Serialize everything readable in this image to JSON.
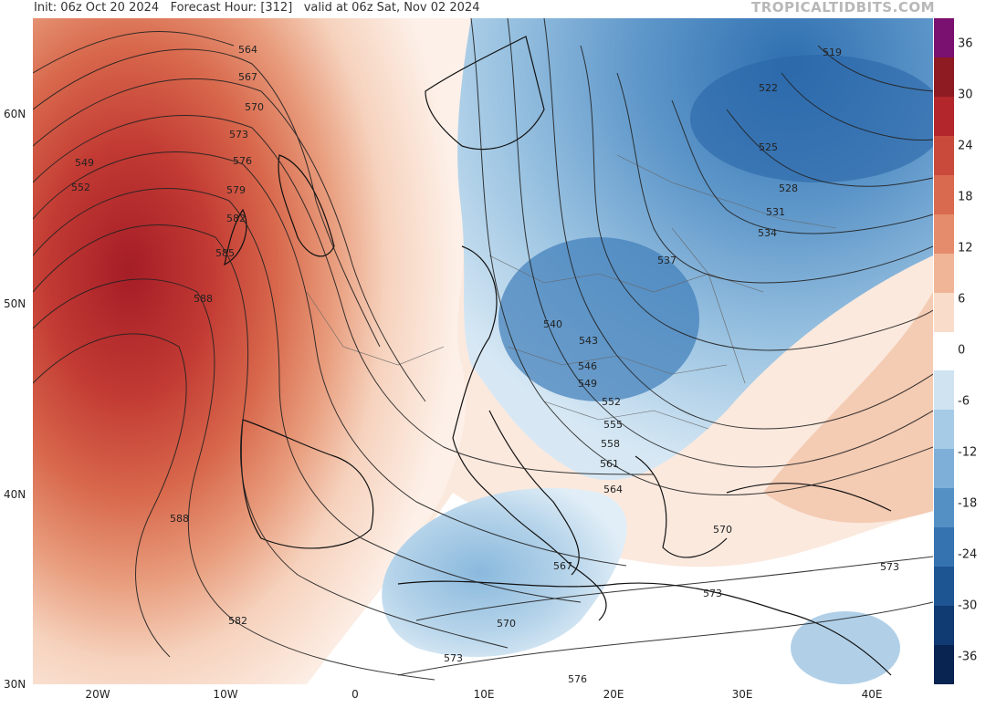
{
  "header": {
    "init": "Init: 06z Oct 20 2024",
    "forecast": "Forecast Hour: [312]",
    "valid": "valid at 06z Sat, Nov 02 2024",
    "brand": "TROPICALTIDBITS.COM"
  },
  "axes": {
    "lat_labels": [
      "60N",
      "50N",
      "40N",
      "30N"
    ],
    "lon_labels": [
      "20W",
      "10W",
      "0",
      "10E",
      "20E",
      "30E",
      "40E"
    ]
  },
  "colorbar": {
    "labels": [
      "36",
      "30",
      "24",
      "18",
      "12",
      "6",
      "0",
      "-6",
      "-12",
      "-18",
      "-24",
      "-30",
      "-36"
    ],
    "colors": [
      "#7a1070",
      "#8e1a22",
      "#b3262b",
      "#c94a3a",
      "#d96a4f",
      "#e58c6c",
      "#f0b597",
      "#f9dcca",
      "#ffffff",
      "#cfe3f1",
      "#a6cbe6",
      "#7dafd8",
      "#5590c5",
      "#3572b0",
      "#1d5592",
      "#103a72",
      "#0a2452"
    ]
  },
  "contours": {
    "labels": [
      "564",
      "567",
      "570",
      "573",
      "576",
      "579",
      "582",
      "585",
      "588",
      "549",
      "552",
      "519",
      "522",
      "525",
      "528",
      "531",
      "534",
      "537",
      "540",
      "543",
      "546",
      "549",
      "552",
      "555",
      "558",
      "561",
      "564",
      "567",
      "570",
      "573",
      "576",
      "573",
      "570",
      "573",
      "582",
      "588"
    ]
  }
}
